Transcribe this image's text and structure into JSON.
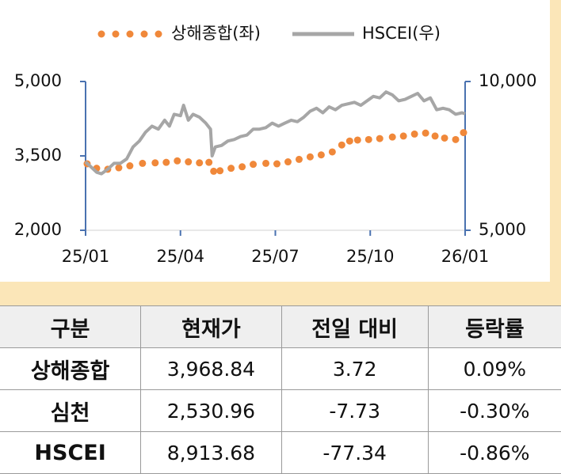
{
  "chart_data": {
    "type": "line",
    "legend": "top",
    "xlim": [
      0,
      12
    ],
    "xticks": [
      {
        "value": 0,
        "label": "25/01"
      },
      {
        "value": 3,
        "label": "25/04"
      },
      {
        "value": 6,
        "label": "25/07"
      },
      {
        "value": 9,
        "label": "25/10"
      },
      {
        "value": 12,
        "label": "26/01"
      }
    ],
    "ylim": [
      2000,
      5000
    ],
    "yticks": [
      {
        "value": 2000,
        "label": "2,000"
      },
      {
        "value": 3500,
        "label": "3,500"
      },
      {
        "value": 5000,
        "label": "5,000"
      }
    ],
    "y2lim": [
      5000,
      10000
    ],
    "y2ticks": [
      {
        "value": 5000,
        "label": "5,000"
      },
      {
        "value": 10000,
        "label": "10,000"
      }
    ],
    "series": [
      {
        "name": "상해종합(좌)",
        "color": "#f0883a",
        "style": "dots",
        "x": [
          0.05,
          0.35,
          0.7,
          1.05,
          1.4,
          1.8,
          2.2,
          2.55,
          2.9,
          3.25,
          3.6,
          3.9,
          4.05,
          4.25,
          4.6,
          4.95,
          5.3,
          5.7,
          6.05,
          6.4,
          6.75,
          7.1,
          7.45,
          7.8,
          8.1,
          8.35,
          8.6,
          8.95,
          9.3,
          9.7,
          10.05,
          10.4,
          10.75,
          11.05,
          11.35,
          11.7,
          11.95
        ],
        "values": [
          3340,
          3250,
          3230,
          3260,
          3300,
          3350,
          3360,
          3370,
          3400,
          3380,
          3360,
          3370,
          3190,
          3200,
          3250,
          3280,
          3330,
          3350,
          3340,
          3380,
          3430,
          3480,
          3520,
          3580,
          3720,
          3800,
          3820,
          3830,
          3850,
          3880,
          3900,
          3940,
          3960,
          3900,
          3860,
          3830,
          3969
        ]
      },
      {
        "name": "HSCEI(우)",
        "color": "#a6a6a6",
        "style": "line",
        "axis": "y2",
        "x": [
          0,
          0.2,
          0.35,
          0.5,
          0.7,
          0.9,
          1.1,
          1.3,
          1.5,
          1.7,
          1.9,
          2.1,
          2.3,
          2.5,
          2.65,
          2.8,
          3.0,
          3.1,
          3.25,
          3.4,
          3.6,
          3.8,
          3.95,
          4.0,
          4.1,
          4.3,
          4.5,
          4.7,
          4.9,
          5.1,
          5.3,
          5.5,
          5.7,
          5.9,
          6.1,
          6.3,
          6.5,
          6.7,
          6.9,
          7.1,
          7.3,
          7.5,
          7.7,
          7.9,
          8.1,
          8.3,
          8.5,
          8.7,
          8.9,
          9.1,
          9.3,
          9.5,
          9.7,
          9.9,
          10.1,
          10.3,
          10.5,
          10.7,
          10.9,
          11.1,
          11.3,
          11.5,
          11.7,
          11.9,
          12.0
        ],
        "values": [
          7300,
          7100,
          6950,
          6900,
          7050,
          7250,
          7250,
          7400,
          7800,
          8000,
          8300,
          8500,
          8400,
          8700,
          8500,
          8900,
          8850,
          9200,
          8700,
          8900,
          8800,
          8600,
          8400,
          7500,
          7800,
          7850,
          8000,
          8050,
          8150,
          8200,
          8400,
          8400,
          8450,
          8600,
          8500,
          8600,
          8700,
          8650,
          8800,
          9000,
          9100,
          8950,
          9150,
          9050,
          9200,
          9250,
          9300,
          9200,
          9350,
          9500,
          9450,
          9650,
          9550,
          9350,
          9400,
          9500,
          9600,
          9350,
          9450,
          9050,
          9100,
          9050,
          8900,
          8950,
          8914
        ]
      }
    ]
  },
  "table": {
    "header": [
      "구분",
      "현재가",
      "전일 대비",
      "등락률"
    ],
    "rows": [
      [
        "상해종합",
        "3,968.84",
        "3.72",
        "0.09%"
      ],
      [
        "심천",
        "2,530.96",
        "-7.73",
        "-0.30%"
      ],
      [
        "HSCEI",
        "8,913.68",
        "-77.34",
        "-0.86%"
      ]
    ]
  }
}
